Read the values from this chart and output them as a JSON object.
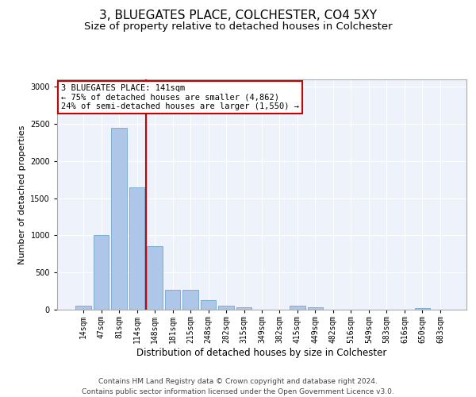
{
  "title": "3, BLUEGATES PLACE, COLCHESTER, CO4 5XY",
  "subtitle": "Size of property relative to detached houses in Colchester",
  "xlabel": "Distribution of detached houses by size in Colchester",
  "ylabel": "Number of detached properties",
  "categories": [
    "14sqm",
    "47sqm",
    "81sqm",
    "114sqm",
    "148sqm",
    "181sqm",
    "215sqm",
    "248sqm",
    "282sqm",
    "315sqm",
    "349sqm",
    "382sqm",
    "415sqm",
    "449sqm",
    "482sqm",
    "516sqm",
    "549sqm",
    "583sqm",
    "616sqm",
    "650sqm",
    "683sqm"
  ],
  "values": [
    50,
    1000,
    2450,
    1650,
    850,
    270,
    270,
    130,
    50,
    30,
    5,
    5,
    50,
    30,
    5,
    5,
    5,
    5,
    5,
    25,
    5
  ],
  "bar_color": "#aec6e8",
  "bar_edgecolor": "#7bafd4",
  "vline_color": "#cc0000",
  "annotation_text": "3 BLUEGATES PLACE: 141sqm\n← 75% of detached houses are smaller (4,862)\n24% of semi-detached houses are larger (1,550) →",
  "annotation_box_color": "#ffffff",
  "annotation_box_edgecolor": "#cc0000",
  "ylim": [
    0,
    3100
  ],
  "yticks": [
    0,
    500,
    1000,
    1500,
    2000,
    2500,
    3000
  ],
  "background_color": "#eef2fb",
  "footer_line1": "Contains HM Land Registry data © Crown copyright and database right 2024.",
  "footer_line2": "Contains public sector information licensed under the Open Government Licence v3.0.",
  "title_fontsize": 11,
  "subtitle_fontsize": 9.5,
  "xlabel_fontsize": 8.5,
  "ylabel_fontsize": 8,
  "tick_fontsize": 7,
  "annotation_fontsize": 7.5,
  "footer_fontsize": 6.5
}
